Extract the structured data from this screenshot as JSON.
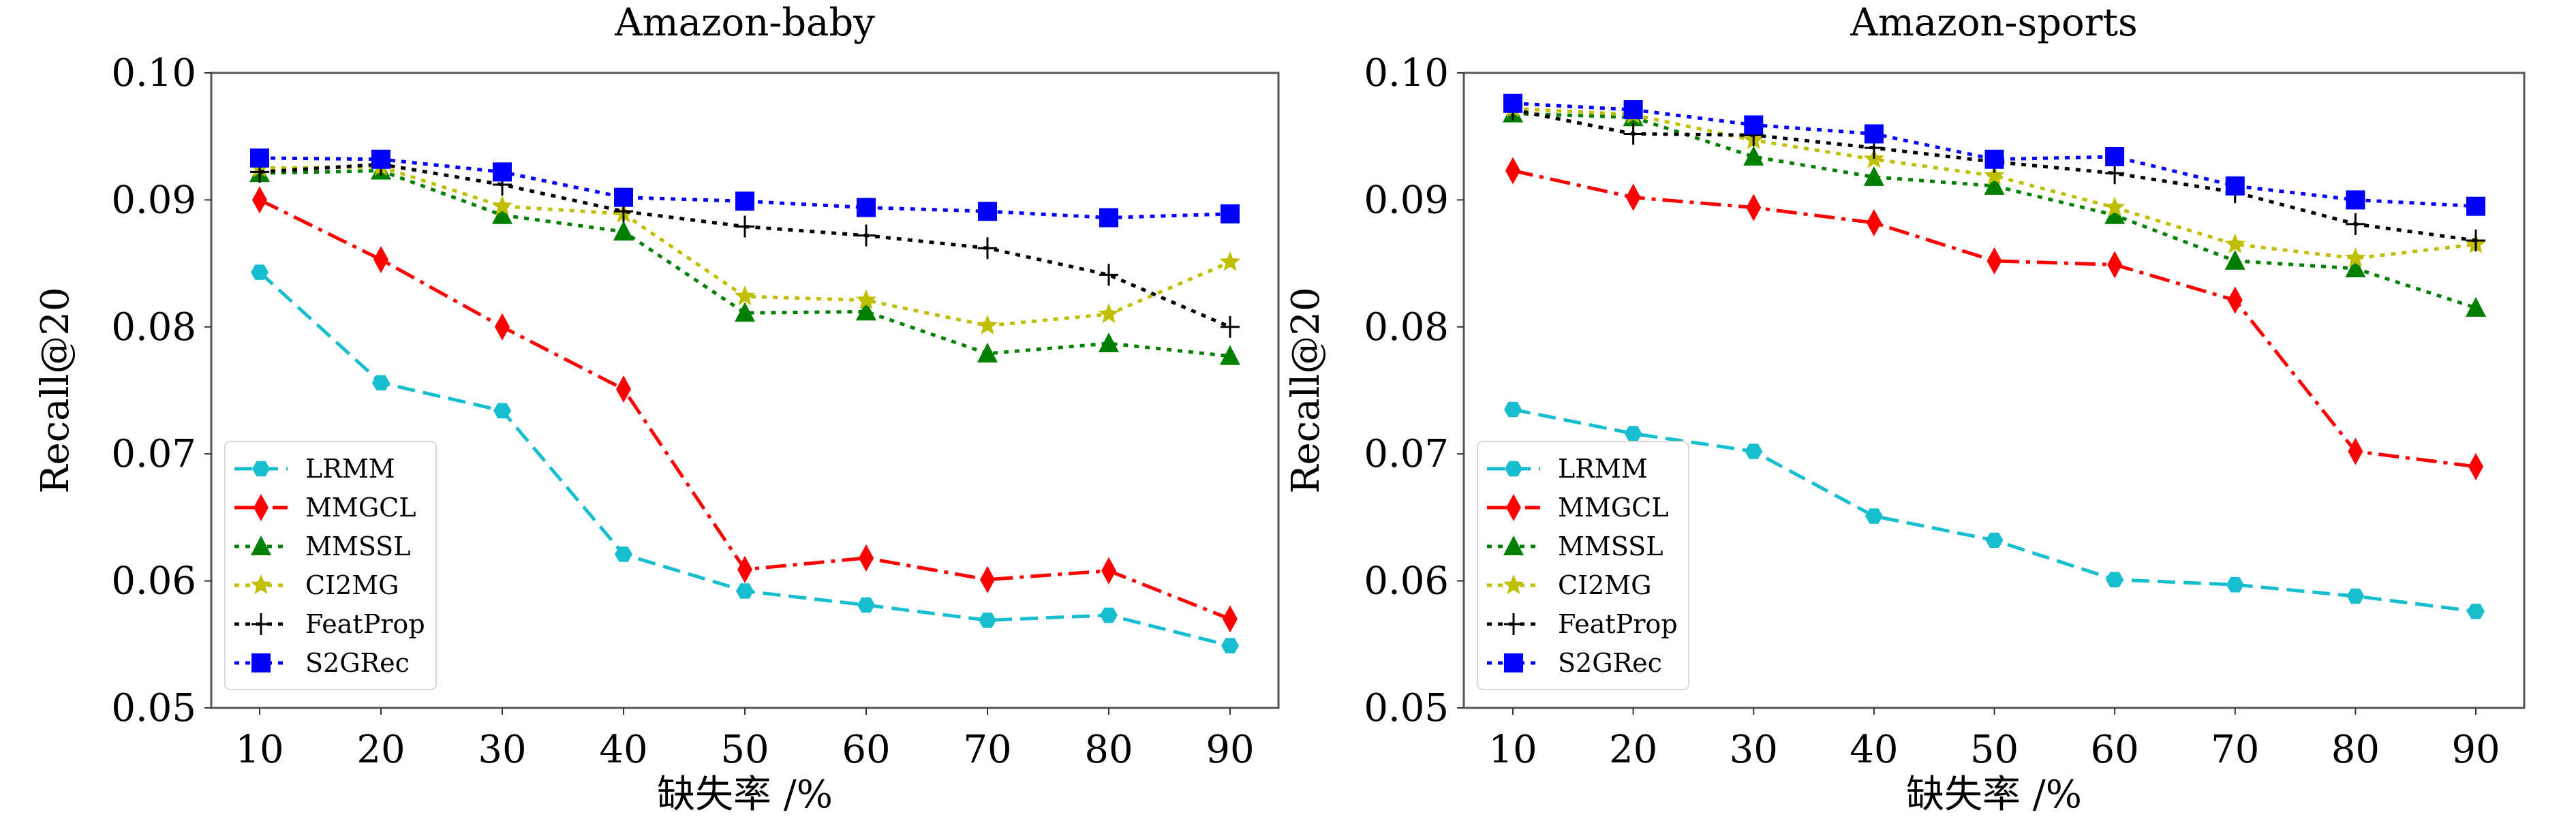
{
  "chart_data": [
    {
      "type": "line",
      "title": "Amazon-baby",
      "xlabel": "缺失率 /%",
      "ylabel": "Recall@20",
      "x": [
        10,
        20,
        30,
        40,
        50,
        60,
        70,
        80,
        90
      ],
      "xticks": [
        "10",
        "20",
        "30",
        "40",
        "50",
        "60",
        "70",
        "80",
        "90"
      ],
      "ylim": [
        0.05,
        0.1
      ],
      "yticks": [
        "0.05",
        "0.06",
        "0.07",
        "0.08",
        "0.09",
        "0.10"
      ],
      "grid": false,
      "legend_position": "lower-left",
      "series": [
        {
          "name": "LRMM",
          "color": "#17becf",
          "marker": "hexagon",
          "linestyle": "dashed",
          "values": [
            0.0843,
            0.0756,
            0.0734,
            0.0621,
            0.0592,
            0.0581,
            0.0569,
            0.0573,
            0.0549
          ]
        },
        {
          "name": "MMGCL",
          "color": "#ff0000",
          "marker": "diamond",
          "linestyle": "dashdot",
          "values": [
            0.09,
            0.0853,
            0.08,
            0.0751,
            0.0609,
            0.0618,
            0.0601,
            0.0608,
            0.057
          ]
        },
        {
          "name": "MMSSL",
          "color": "#008000",
          "marker": "triangle",
          "linestyle": "dotted",
          "values": [
            0.0921,
            0.0923,
            0.0888,
            0.0875,
            0.0811,
            0.0812,
            0.0779,
            0.0787,
            0.0777
          ]
        },
        {
          "name": "CI2MG",
          "color": "#bfbf00",
          "marker": "star",
          "linestyle": "dotted",
          "values": [
            0.0925,
            0.0926,
            0.0895,
            0.0889,
            0.0824,
            0.0821,
            0.0801,
            0.081,
            0.0851
          ]
        },
        {
          "name": "FeatProp",
          "color": "#000000",
          "marker": "plus",
          "linestyle": "dotted",
          "values": [
            0.0922,
            0.0928,
            0.0912,
            0.0891,
            0.0879,
            0.0872,
            0.0862,
            0.0841,
            0.08
          ]
        },
        {
          "name": "S2GRec",
          "color": "#0000ff",
          "marker": "square",
          "linestyle": "dotted",
          "values": [
            0.0933,
            0.0932,
            0.0922,
            0.0902,
            0.0899,
            0.0894,
            0.0891,
            0.0886,
            0.0889
          ]
        }
      ]
    },
    {
      "type": "line",
      "title": "Amazon-sports",
      "xlabel": "缺失率 /%",
      "ylabel": "Recall@20",
      "x": [
        10,
        20,
        30,
        40,
        50,
        60,
        70,
        80,
        90
      ],
      "xticks": [
        "10",
        "20",
        "30",
        "40",
        "50",
        "60",
        "70",
        "80",
        "90"
      ],
      "ylim": [
        0.05,
        0.1
      ],
      "yticks": [
        "0.05",
        "0.06",
        "0.07",
        "0.08",
        "0.09",
        "0.10"
      ],
      "grid": false,
      "legend_position": "lower-left",
      "series": [
        {
          "name": "LRMM",
          "color": "#17becf",
          "marker": "hexagon",
          "linestyle": "dashed",
          "values": [
            0.0735,
            0.0716,
            0.0702,
            0.0651,
            0.0632,
            0.0601,
            0.0597,
            0.0588,
            0.0576
          ]
        },
        {
          "name": "MMGCL",
          "color": "#ff0000",
          "marker": "diamond",
          "linestyle": "dashdot",
          "values": [
            0.0923,
            0.0902,
            0.0894,
            0.0882,
            0.0852,
            0.0849,
            0.0821,
            0.0702,
            0.069
          ]
        },
        {
          "name": "MMSSL",
          "color": "#008000",
          "marker": "triangle",
          "linestyle": "dotted",
          "values": [
            0.0968,
            0.0965,
            0.0934,
            0.0918,
            0.0911,
            0.0888,
            0.0852,
            0.0846,
            0.0815
          ]
        },
        {
          "name": "CI2MG",
          "color": "#bfbf00",
          "marker": "star",
          "linestyle": "dotted",
          "values": [
            0.0972,
            0.0967,
            0.0947,
            0.0932,
            0.0919,
            0.0894,
            0.0865,
            0.0854,
            0.0865
          ]
        },
        {
          "name": "FeatProp",
          "color": "#000000",
          "marker": "plus",
          "linestyle": "dotted",
          "values": [
            0.0971,
            0.0952,
            0.0951,
            0.0941,
            0.093,
            0.0921,
            0.0906,
            0.0881,
            0.0868
          ]
        },
        {
          "name": "S2GRec",
          "color": "#0000ff",
          "marker": "square",
          "linestyle": "dotted",
          "values": [
            0.0976,
            0.0971,
            0.0959,
            0.0952,
            0.0932,
            0.0934,
            0.0911,
            0.09,
            0.0895
          ]
        }
      ]
    }
  ]
}
